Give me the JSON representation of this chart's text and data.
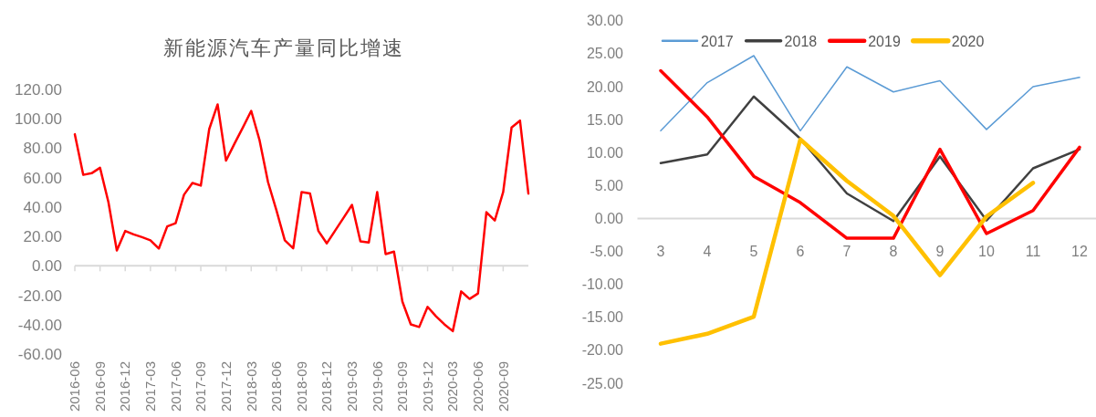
{
  "chart_data": [
    {
      "type": "line",
      "title": "新能源汽车产量同比增速",
      "categories": [
        "2016-06",
        null,
        null,
        "2016-09",
        null,
        null,
        "2016-12",
        null,
        null,
        "2017-03",
        null,
        null,
        "2017-06",
        null,
        null,
        "2017-09",
        null,
        null,
        "2017-12",
        null,
        null,
        "2018-03",
        null,
        null,
        "2018-06",
        null,
        null,
        "2018-09",
        null,
        null,
        "2018-12",
        null,
        null,
        "2019-03",
        null,
        null,
        "2019-06",
        null,
        null,
        "2019-09",
        null,
        null,
        "2019-12",
        null,
        null,
        "2020-03",
        null,
        null,
        "2020-06",
        null,
        null,
        "2020-09",
        null,
        null,
        null
      ],
      "series": [
        {
          "color": "#ff0000",
          "values": [
            89.5,
            61.9,
            63,
            66.7,
            43.3,
            10.4,
            23.7,
            21.4,
            19.5,
            17.4,
            11.7,
            26.8,
            29,
            48.4,
            56.4,
            54.6,
            93,
            109.8,
            71.6,
            83,
            94,
            105.4,
            85.3,
            57,
            37.8,
            17.4,
            11.9,
            50.2,
            49.3,
            23.7,
            15.3,
            24,
            32.7,
            41.5,
            16.6,
            15.9,
            50.2,
            8,
            9.7,
            -24.3,
            -39.8,
            -41.6,
            -27.9,
            -34.3,
            -39.8,
            -44.4,
            -17.4,
            -22.5,
            -18.8,
            36.5,
            30.9,
            50.2,
            94.1,
            98.8,
            49.1
          ]
        }
      ],
      "ylim": [
        -60,
        120
      ],
      "yticks": [
        {
          "value": -60,
          "label": "-60.00"
        },
        {
          "value": -40,
          "label": "-40.00"
        },
        {
          "value": -20,
          "label": "-20.00"
        },
        {
          "value": 0,
          "label": "0.00"
        },
        {
          "value": 20,
          "label": "20.00"
        },
        {
          "value": 40,
          "label": "40.00"
        },
        {
          "value": 60,
          "label": "60.00"
        },
        {
          "value": 80,
          "label": "80.00"
        },
        {
          "value": 100,
          "label": "100.00"
        },
        {
          "value": 120,
          "label": "120.00"
        }
      ]
    },
    {
      "type": "line",
      "categories": [
        "3",
        "4",
        "5",
        "6",
        "7",
        "8",
        "9",
        "10",
        "11",
        "12"
      ],
      "series": [
        {
          "name": "2017",
          "color": "#5b9bd5",
          "values": [
            13.3,
            20.6,
            24.7,
            13.3,
            23.0,
            19.2,
            20.9,
            13.5,
            20.0,
            21.4
          ]
        },
        {
          "name": "2018",
          "color": "#404040",
          "values": [
            8.4,
            9.7,
            18.5,
            12.1,
            3.8,
            -0.4,
            9.4,
            -0.3,
            7.6,
            10.5
          ]
        },
        {
          "name": "2019",
          "color": "#ff0000",
          "values": [
            22.4,
            15.4,
            6.4,
            2.4,
            -3.0,
            -3.0,
            10.5,
            -2.3,
            1.2,
            10.8
          ]
        },
        {
          "name": "2020",
          "color": "#ffc000",
          "values": [
            -19.0,
            -17.5,
            -14.9,
            12.0,
            5.7,
            0.4,
            -8.6,
            0.3,
            5.4,
            null
          ]
        }
      ],
      "ylim": [
        -25,
        30
      ],
      "yticks": [
        {
          "value": -25,
          "label": "-25.00"
        },
        {
          "value": -20,
          "label": "-20.00"
        },
        {
          "value": -15,
          "label": "-15.00"
        },
        {
          "value": -10,
          "label": "-10.00"
        },
        {
          "value": -5,
          "label": "-5.00"
        },
        {
          "value": 0,
          "label": "0.00"
        },
        {
          "value": 5,
          "label": "5.00"
        },
        {
          "value": 10,
          "label": "10.00"
        },
        {
          "value": 15,
          "label": "15.00"
        },
        {
          "value": 20,
          "label": "20.00"
        },
        {
          "value": 25,
          "label": "25.00"
        },
        {
          "value": 30,
          "label": "30.00"
        }
      ],
      "legend": "top"
    }
  ]
}
